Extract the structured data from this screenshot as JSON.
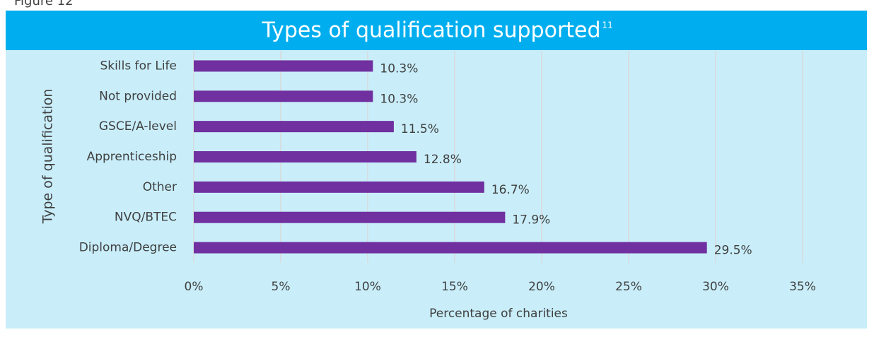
{
  "chart_data": {
    "type": "bar",
    "orientation": "horizontal",
    "figure_label": "Figure 12",
    "title": "Types of qualification supported",
    "title_superscript": "11",
    "x_label": "Percentage of charities",
    "y_label": "Type of qualification",
    "categories": [
      "Skills for Life",
      "Not provided",
      "GSCE/A-level",
      "Apprenticeship",
      "Other",
      "NVQ/BTEC",
      "Diploma/Degree"
    ],
    "values": [
      10.3,
      10.3,
      11.5,
      12.8,
      16.7,
      17.9,
      29.5
    ],
    "value_labels": [
      "10.3%",
      "10.3%",
      "11.5%",
      "12.8%",
      "16.7%",
      "17.9%",
      "29.5%"
    ],
    "color": "#7030a0",
    "xlim": [
      0,
      35
    ],
    "xticks": [
      {
        "value": 0,
        "label": "0%"
      },
      {
        "value": 5,
        "label": "5%"
      },
      {
        "value": 10,
        "label": "10%"
      },
      {
        "value": 15,
        "label": "15%"
      },
      {
        "value": 20,
        "label": "20%"
      },
      {
        "value": 25,
        "label": "25%"
      },
      {
        "value": 30,
        "label": "30%"
      },
      {
        "value": 35,
        "label": "35%"
      }
    ],
    "grid": true
  }
}
